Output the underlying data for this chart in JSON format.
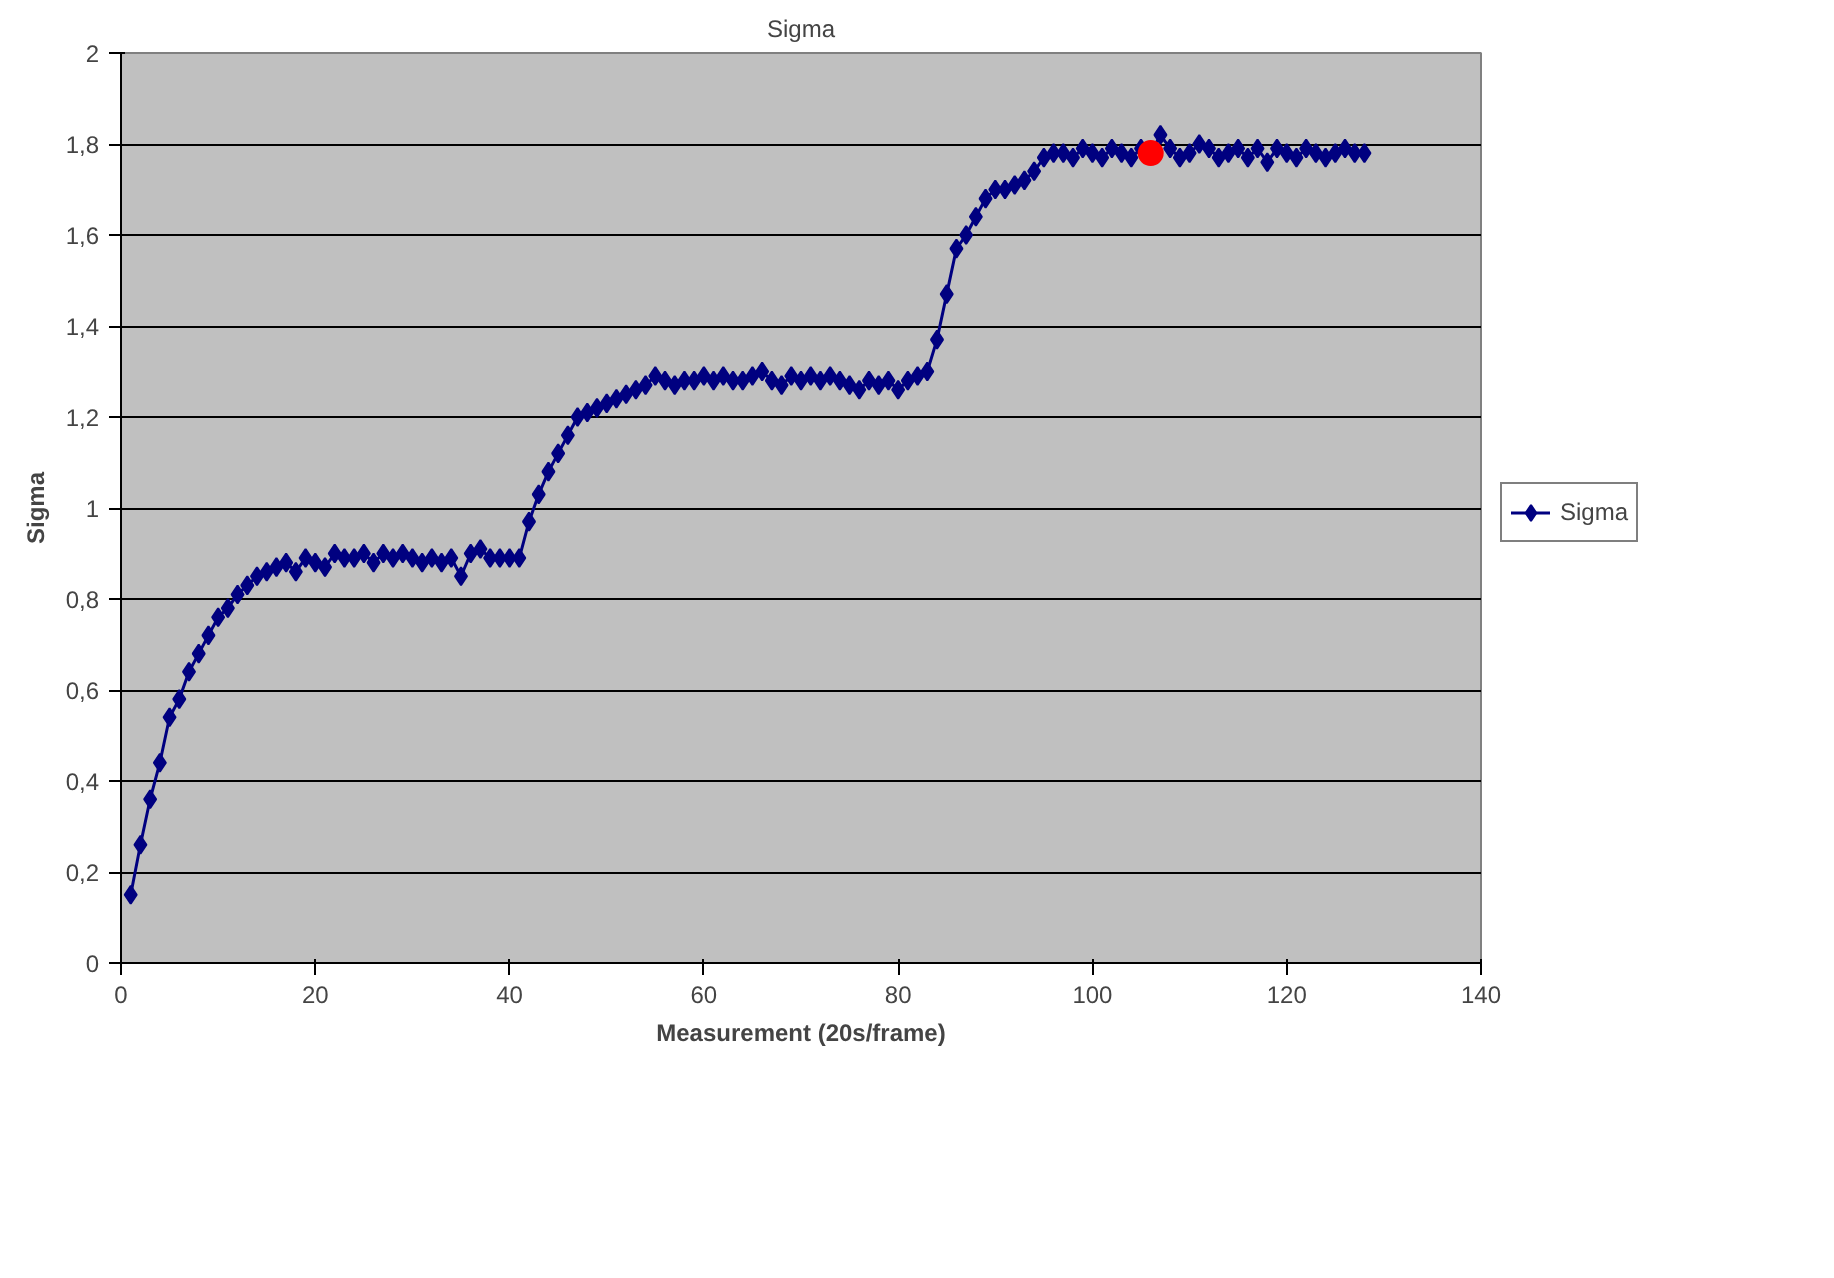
{
  "chart_data": {
    "type": "line",
    "title": "Sigma",
    "xlabel": "Measurement (20s/frame)",
    "ylabel": "Sigma",
    "xlim": [
      0,
      140
    ],
    "xticks": [
      0,
      20,
      40,
      60,
      80,
      100,
      120,
      140
    ],
    "ylim": [
      0,
      2
    ],
    "yticks": [
      0,
      {
        "value": 0.2,
        "label": "0,2"
      },
      {
        "value": 0.4,
        "label": "0,4"
      },
      {
        "value": 0.6,
        "label": "0,6"
      },
      {
        "value": 0.8,
        "label": "0,8"
      },
      1,
      {
        "value": 1.2,
        "label": "1,2"
      },
      {
        "value": 1.4,
        "label": "1,4"
      },
      {
        "value": 1.6,
        "label": "1,6"
      },
      {
        "value": 1.8,
        "label": "1,8"
      },
      2
    ],
    "grid": "y",
    "legend": "right",
    "marker": "diamond",
    "line_style": "solid",
    "x": [
      1,
      2,
      3,
      4,
      5,
      6,
      7,
      8,
      9,
      10,
      11,
      12,
      13,
      14,
      15,
      16,
      17,
      18,
      19,
      20,
      21,
      22,
      23,
      24,
      25,
      26,
      27,
      28,
      29,
      30,
      31,
      32,
      33,
      34,
      35,
      36,
      37,
      38,
      39,
      40,
      41,
      42,
      43,
      44,
      45,
      46,
      47,
      48,
      49,
      50,
      51,
      52,
      53,
      54,
      55,
      56,
      57,
      58,
      59,
      60,
      61,
      62,
      63,
      64,
      65,
      66,
      67,
      68,
      69,
      70,
      71,
      72,
      73,
      74,
      75,
      76,
      77,
      78,
      79,
      80,
      81,
      82,
      83,
      84,
      85,
      86,
      87,
      88,
      89,
      90,
      91,
      92,
      93,
      94,
      95,
      96,
      97,
      98,
      99,
      100,
      101,
      102,
      103,
      104,
      105,
      106,
      107,
      108,
      109,
      110,
      111,
      112,
      113,
      114,
      115,
      116,
      117,
      118,
      119,
      120,
      121,
      122,
      123,
      124,
      125,
      126,
      127,
      128
    ],
    "series": [
      {
        "name": "Sigma",
        "color": "#000080",
        "values": [
          0.15,
          0.26,
          0.36,
          0.44,
          0.54,
          0.58,
          0.64,
          0.68,
          0.72,
          0.76,
          0.78,
          0.81,
          0.83,
          0.85,
          0.86,
          0.87,
          0.88,
          0.86,
          0.89,
          0.88,
          0.87,
          0.9,
          0.89,
          0.89,
          0.9,
          0.88,
          0.9,
          0.89,
          0.9,
          0.89,
          0.88,
          0.89,
          0.88,
          0.89,
          0.85,
          0.9,
          0.91,
          0.89,
          0.89,
          0.89,
          0.89,
          0.97,
          1.03,
          1.08,
          1.12,
          1.16,
          1.2,
          1.21,
          1.22,
          1.23,
          1.24,
          1.25,
          1.26,
          1.27,
          1.29,
          1.28,
          1.27,
          1.28,
          1.28,
          1.29,
          1.28,
          1.29,
          1.28,
          1.28,
          1.29,
          1.3,
          1.28,
          1.27,
          1.29,
          1.28,
          1.29,
          1.28,
          1.29,
          1.28,
          1.27,
          1.26,
          1.28,
          1.27,
          1.28,
          1.26,
          1.28,
          1.29,
          1.3,
          1.37,
          1.47,
          1.57,
          1.6,
          1.64,
          1.68,
          1.7,
          1.7,
          1.71,
          1.72,
          1.74,
          1.77,
          1.78,
          1.78,
          1.77,
          1.79,
          1.78,
          1.77,
          1.79,
          1.78,
          1.77,
          1.79,
          1.78,
          1.82,
          1.79,
          1.77,
          1.78,
          1.8,
          1.79,
          1.77,
          1.78,
          1.79,
          1.77,
          1.79,
          1.76,
          1.79,
          1.78,
          1.77,
          1.79,
          1.78,
          1.77,
          1.78,
          1.79,
          1.78,
          1.78
        ]
      },
      {
        "type": "scatter",
        "color": "#ff0000",
        "marker": "circle",
        "x": [
          106
        ],
        "values": [
          1.78
        ]
      }
    ]
  }
}
